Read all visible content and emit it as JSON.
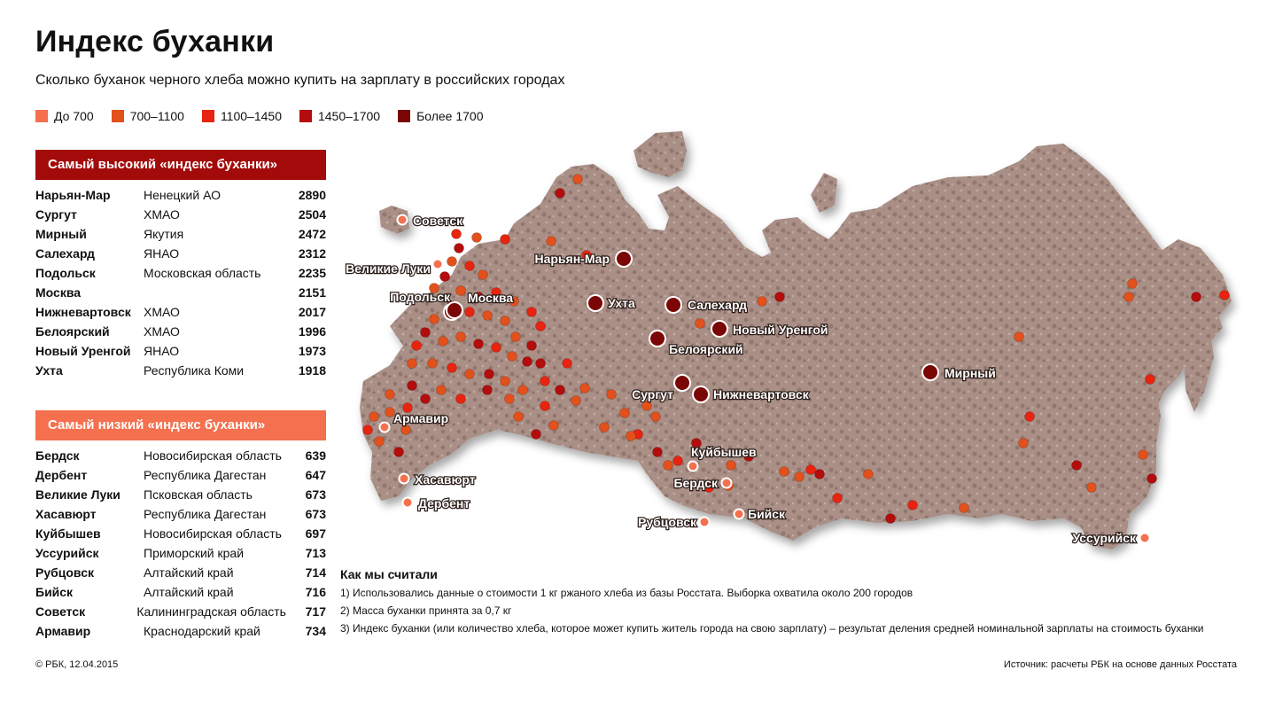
{
  "title": "Индекс буханки",
  "subtitle": "Сколько буханок черного хлеба можно купить на зарплату в российских городах",
  "legend": [
    {
      "label": "До 700",
      "color": "#f4704e"
    },
    {
      "label": "700–1100",
      "color": "#e2501c"
    },
    {
      "label": "1100–1450",
      "color": "#e8230f"
    },
    {
      "label": "1450–1700",
      "color": "#b30d0d"
    },
    {
      "label": "Более 1700",
      "color": "#7a0606"
    }
  ],
  "highest": {
    "title": "Самый высокий «индекс буханки»",
    "color": "#a30b0b",
    "rows": [
      {
        "city": "Нарьян-Мар",
        "region": "Ненецкий АО",
        "value": "2890"
      },
      {
        "city": "Сургут",
        "region": "ХМАО",
        "value": "2504"
      },
      {
        "city": "Мирный",
        "region": "Якутия",
        "value": "2472"
      },
      {
        "city": "Салехард",
        "region": "ЯНАО",
        "value": "2312"
      },
      {
        "city": "Подольск",
        "region": "Московская область",
        "value": "2235"
      },
      {
        "city": "Москва",
        "region": "",
        "value": "2151"
      },
      {
        "city": "Нижневартовск",
        "region": "ХМАО",
        "value": "2017"
      },
      {
        "city": "Белоярский",
        "region": "ХМАО",
        "value": "1996"
      },
      {
        "city": "Новый Уренгой",
        "region": "ЯНАО",
        "value": "1973"
      },
      {
        "city": "Ухта",
        "region": "Республика Коми",
        "value": "1918"
      }
    ]
  },
  "lowest": {
    "title": "Самый низкий «индекс буханки»",
    "color": "#f4704e",
    "rows": [
      {
        "city": "Бердск",
        "region": "Новосибирская область",
        "value": "639"
      },
      {
        "city": "Дербент",
        "region": "Республика Дагестан",
        "value": "647"
      },
      {
        "city": "Великие Луки",
        "region": "Псковская область",
        "value": "673"
      },
      {
        "city": "Хасавюрт",
        "region": "Республика Дагестан",
        "value": "673"
      },
      {
        "city": "Куйбышев",
        "region": "Новосибирская область",
        "value": "697"
      },
      {
        "city": "Уссурийск",
        "region": "Приморский край",
        "value": "713"
      },
      {
        "city": "Рубцовск",
        "region": "Алтайский край",
        "value": "714"
      },
      {
        "city": "Бийск",
        "region": "Алтайский край",
        "value": "716"
      },
      {
        "city": "Советск",
        "region": "Калининградская область",
        "value": "717"
      },
      {
        "city": "Армавир",
        "region": "Краснодарский край",
        "value": "734"
      }
    ]
  },
  "map": {
    "high_color": "#7a0606",
    "low_color": "#f4704e",
    "labeled_cities": [
      {
        "name": "Советск",
        "cat": "low"
      },
      {
        "name": "Великие Луки",
        "cat": "low"
      },
      {
        "name": "Нарьян-Мар",
        "cat": "high"
      },
      {
        "name": "Подольск",
        "cat": "high"
      },
      {
        "name": "Москва",
        "cat": "high"
      },
      {
        "name": "Ухта",
        "cat": "high"
      },
      {
        "name": "Салехард",
        "cat": "high"
      },
      {
        "name": "Новый Уренгой",
        "cat": "high"
      },
      {
        "name": "Белоярский",
        "cat": "high"
      },
      {
        "name": "Мирный",
        "cat": "high"
      },
      {
        "name": "Сургут",
        "cat": "high"
      },
      {
        "name": "Нижневартовск",
        "cat": "high"
      },
      {
        "name": "Армавир",
        "cat": "low"
      },
      {
        "name": "Куйбышев",
        "cat": "low"
      },
      {
        "name": "Хасавюрт",
        "cat": "low"
      },
      {
        "name": "Бердск",
        "cat": "low"
      },
      {
        "name": "Дербент",
        "cat": "low"
      },
      {
        "name": "Бийск",
        "cat": "low"
      },
      {
        "name": "Рубцовск",
        "cat": "low"
      },
      {
        "name": "Уссурийск",
        "cat": "low"
      }
    ]
  },
  "method": {
    "title": "Как мы считали",
    "notes": [
      "1) Использовались данные о стоимости 1 кг ржаного хлеба из базы Росстата. Выборка охватила около 200 городов",
      "2) Масса буханки принята за 0,7 кг",
      "3) Индекс буханки (или количество хлеба, которое может купить житель города на свою зарплату) – результат деления средней номинальной зарплаты на стоимость буханки"
    ]
  },
  "footer": {
    "copyright": "© РБК, 12.04.2015",
    "source": "Источник: расчеты РБК на основе данных Росстата"
  }
}
